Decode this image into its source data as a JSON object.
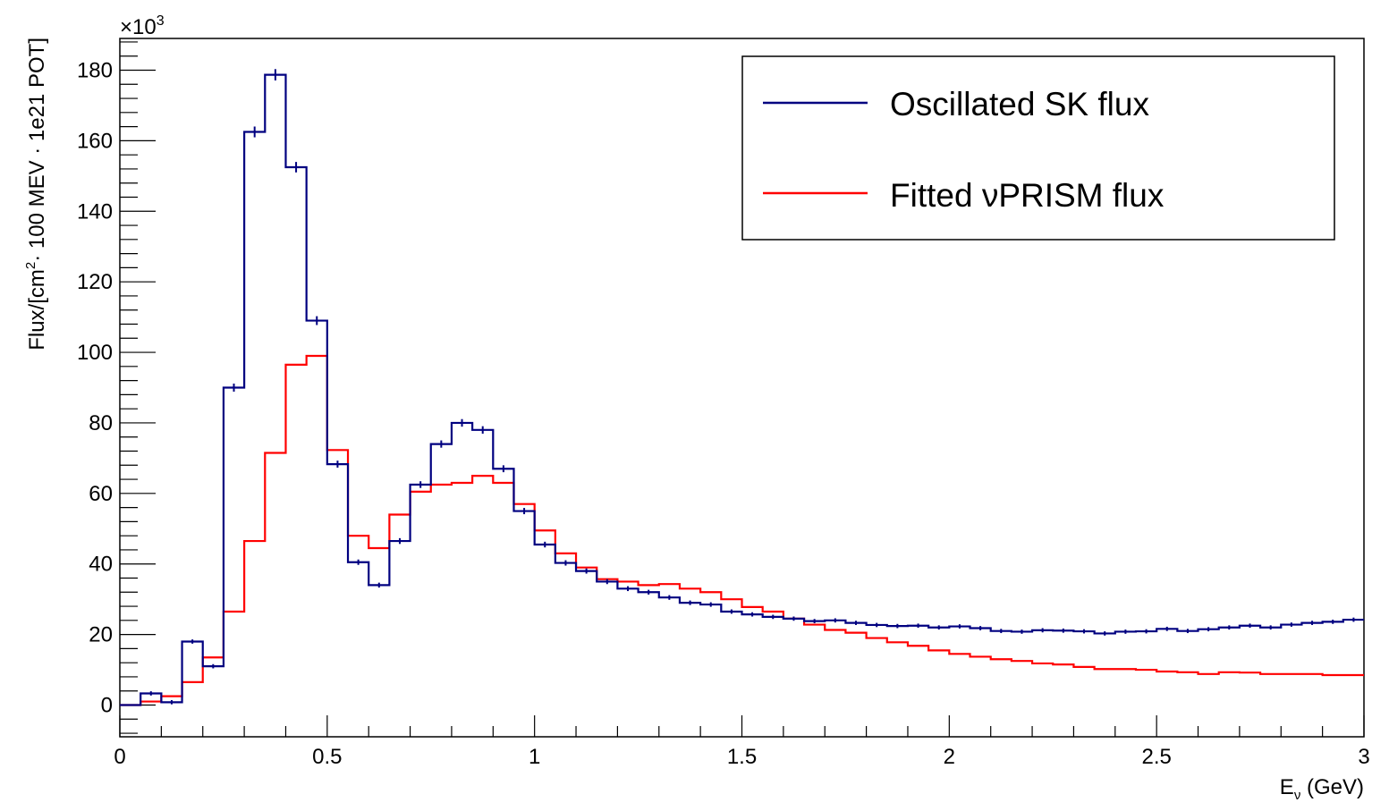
{
  "chart_data": {
    "type": "line",
    "style": "step histogram",
    "multiplier_label": "×10",
    "multiplier_exponent": "3",
    "xlabel": {
      "main": "E",
      "sub": "ν",
      "rest": " (GeV)"
    },
    "ylabel": {
      "pre": "Flux/[cm",
      "sup": "2",
      "post": "· 100 MEV · 1e21 POT]"
    },
    "xlim": [
      0,
      3
    ],
    "ylim": [
      -9,
      189
    ],
    "x_ticks": [
      0,
      0.5,
      1,
      1.5,
      2,
      2.5,
      3
    ],
    "x_tick_labels": [
      "0",
      "0.5",
      "1",
      "1.5",
      "2",
      "2.5",
      "3"
    ],
    "y_ticks": [
      0,
      20,
      40,
      60,
      80,
      100,
      120,
      140,
      160,
      180
    ],
    "y_tick_labels": [
      "0",
      "20",
      "40",
      "60",
      "80",
      "100",
      "120",
      "140",
      "160",
      "180"
    ],
    "grid": false,
    "legend_position": "top-right",
    "bin_width": 0.05,
    "series": [
      {
        "name": "Oscillated SK flux",
        "color": "#000080",
        "error_bars": true,
        "values": [
          0,
          3.3,
          0.8,
          18,
          11,
          90,
          162.5,
          178.7,
          152.5,
          109,
          68.3,
          40.5,
          34,
          46.5,
          62.5,
          74,
          80,
          78,
          67,
          55,
          45.5,
          40.3,
          38,
          35,
          33,
          32,
          30.5,
          29,
          28.5,
          26.5,
          25.7,
          25,
          24.5,
          23.8,
          24,
          23.3,
          22.7,
          22.4,
          22.5,
          22,
          22.3,
          21.8,
          21,
          20.8,
          21.2,
          21.1,
          20.9,
          20.3,
          20.8,
          20.9,
          21.6,
          21,
          21.5,
          22,
          22.5,
          22,
          22.8,
          23.3,
          23.6,
          24.2
        ]
      },
      {
        "name": "Fitted νPRISM flux",
        "color": "#ff0000",
        "error_bars": false,
        "values": [
          0,
          1,
          2.5,
          6.5,
          13.5,
          26.5,
          46.5,
          71.5,
          96.5,
          99,
          72.3,
          48,
          44.5,
          54,
          60.5,
          62.5,
          63,
          65,
          63,
          57,
          49.5,
          43,
          39,
          35.7,
          35,
          34,
          34.3,
          33,
          32,
          30,
          27.8,
          26.5,
          24.5,
          22.8,
          21.3,
          20.5,
          19,
          17.8,
          16.8,
          15.5,
          14.5,
          13.7,
          13,
          12.5,
          11.8,
          11.5,
          10.8,
          10.2,
          10.2,
          10,
          9.5,
          9.3,
          8.8,
          9.3,
          9.2,
          8.8,
          8.8,
          8.8,
          8.5,
          8.5
        ]
      }
    ]
  }
}
